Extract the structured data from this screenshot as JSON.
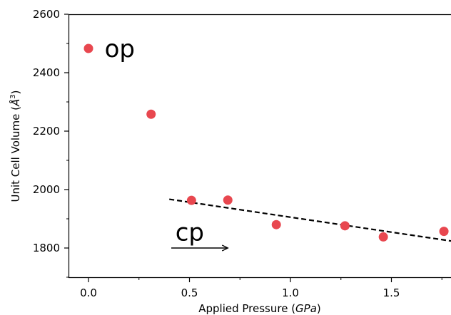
{
  "chart_data": {
    "type": "scatter",
    "xlabel": "Applied Pressure (GPa)",
    "xlabel_plain": "Applied Pressure (",
    "xlabel_italic": "GPa",
    "xlabel_close": ")",
    "ylabel": "Unit Cell Volume (Å³)",
    "ylabel_plain": "Unit Cell Volume (",
    "ylabel_unit": "Å",
    "ylabel_sup": "3",
    "ylabel_close": ")",
    "xlim": [
      -0.1,
      1.8
    ],
    "ylim": [
      1700,
      2600
    ],
    "grid": false,
    "x_ticks": [
      0.0,
      0.5,
      1.0,
      1.5
    ],
    "x_tick_labels": [
      "0.0",
      "0.5",
      "1.0",
      "1.5"
    ],
    "y_ticks": [
      1800,
      2000,
      2200,
      2400,
      2600
    ],
    "y_tick_labels": [
      "1800",
      "2000",
      "2200",
      "2400",
      "2600"
    ],
    "points": [
      {
        "x": 0.0,
        "y": 2483
      },
      {
        "x": 0.31,
        "y": 2258
      },
      {
        "x": 0.51,
        "y": 1963
      },
      {
        "x": 0.69,
        "y": 1964
      },
      {
        "x": 0.93,
        "y": 1880
      },
      {
        "x": 1.27,
        "y": 1876
      },
      {
        "x": 1.46,
        "y": 1838
      },
      {
        "x": 1.76,
        "y": 1857
      }
    ],
    "point_color": "#e8474f",
    "fit_line": {
      "style": "dashed",
      "color": "#000000",
      "x": [
        0.4,
        1.8
      ],
      "y": [
        1967,
        1824
      ]
    },
    "annotations": [
      {
        "text": "op",
        "x": 0.08,
        "y": 2483
      },
      {
        "text": "cp",
        "x": 0.43,
        "y": 1855
      }
    ],
    "arrow": {
      "x": [
        0.41,
        0.69
      ],
      "y": [
        1800,
        1800
      ],
      "color": "#000000"
    }
  }
}
